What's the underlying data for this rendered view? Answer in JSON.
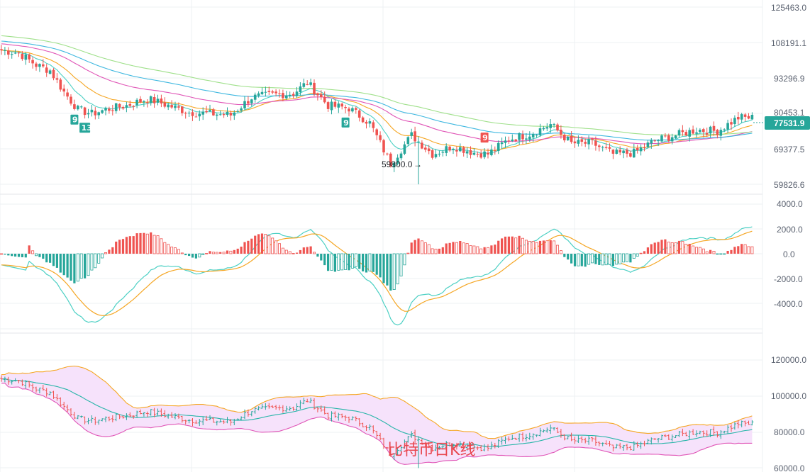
{
  "chart_data": {
    "type": "candlestick",
    "watermark": "比特币日K线",
    "colors": {
      "up": "#26a69a",
      "down": "#ef5350",
      "ma_fast": "#4dd0c4",
      "ma_mid": "#f5a623",
      "ma_slow": "#e056b7",
      "ma_long": "#3fb8e0",
      "ma_longest": "#9fe08a",
      "boll_band": "#f3b0e8",
      "boll_fill": "#f6e2fb",
      "boll_mid": "#26b5a8",
      "macd_line": "#4dd0c4",
      "signal_line": "#f5a623",
      "grid": "#eef0f3",
      "badge": "#26a69a"
    },
    "main_panel": {
      "y_ticks": [
        "125463.0",
        "108191.1",
        "93296.9",
        "80453.1",
        "69377.5",
        "59826.6"
      ],
      "last_price": "77531.9",
      "low_marker": "59800.0",
      "signals": [
        {
          "label": "9",
          "type": "buy",
          "index": 21
        },
        {
          "label": "13",
          "type": "buy",
          "index": 24
        },
        {
          "label": "9",
          "type": "buy",
          "index": 99
        },
        {
          "label": "9",
          "type": "sell",
          "index": 139
        }
      ]
    },
    "macd_panel": {
      "y_ticks": [
        "4000.0",
        "2000.0",
        "0.0",
        "-2000.0",
        "-4000.0"
      ]
    },
    "boll_panel": {
      "y_ticks": [
        "120000.0",
        "100000.0",
        "80000.0",
        "60000.0"
      ]
    },
    "price_anchors": [
      [
        0,
        109500
      ],
      [
        5,
        108500
      ],
      [
        10,
        104000
      ],
      [
        14,
        102000
      ],
      [
        18,
        94000
      ],
      [
        22,
        87500
      ],
      [
        26,
        86000
      ],
      [
        30,
        87500
      ],
      [
        36,
        89000
      ],
      [
        42,
        91500
      ],
      [
        48,
        89000
      ],
      [
        54,
        86500
      ],
      [
        60,
        86000
      ],
      [
        66,
        85500
      ],
      [
        72,
        92000
      ],
      [
        78,
        93000
      ],
      [
        84,
        93500
      ],
      [
        88,
        97500
      ],
      [
        94,
        89000
      ],
      [
        100,
        88000
      ],
      [
        106,
        82500
      ],
      [
        112,
        67500
      ],
      [
        118,
        78000
      ],
      [
        124,
        71000
      ],
      [
        130,
        74000
      ],
      [
        136,
        71500
      ],
      [
        140,
        71000
      ],
      [
        146,
        76500
      ],
      [
        152,
        78500
      ],
      [
        158,
        82000
      ],
      [
        164,
        75000
      ],
      [
        170,
        75000
      ],
      [
        176,
        71000
      ],
      [
        182,
        71500
      ],
      [
        188,
        76000
      ],
      [
        194,
        78000
      ],
      [
        200,
        80000
      ],
      [
        206,
        79500
      ],
      [
        212,
        84500
      ],
      [
        216,
        84500
      ]
    ]
  }
}
